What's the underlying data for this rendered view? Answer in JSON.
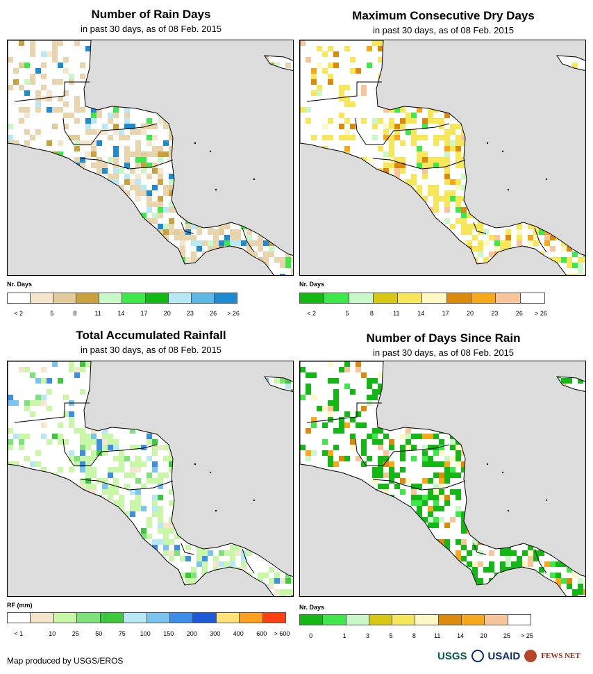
{
  "panels": [
    {
      "id": "rain_days",
      "title": "Number of Rain Days",
      "subtitle": "in past 30 days, as of 08 Feb. 2015",
      "unit": "Nr. Days",
      "legend_colors": [
        "#ffffff",
        "#f4e6cc",
        "#e2cb9b",
        "#c9a23f",
        "#c8f7c8",
        "#3ee84a",
        "#14b814",
        "#b9e8f5",
        "#5cb9e6",
        "#1e8ad2"
      ],
      "legend_labels": [
        "< 2",
        "5",
        "8",
        "11",
        "14",
        "17",
        "20",
        "23",
        "26",
        "> 26"
      ],
      "fill": "#e8d5ad",
      "patches": [
        "#f4e6cc",
        "#e2cb9b",
        "#c9a23f",
        "#c8f7c8",
        "#3ee84a",
        "#b9e8f5",
        "#1e8ad2"
      ]
    },
    {
      "id": "dry_days",
      "title": "Maximum Consecutive Dry Days",
      "subtitle": "in past 30 days, as of 08 Feb. 2015",
      "unit": "Nr. Days",
      "legend_colors": [
        "#14b814",
        "#3ee84a",
        "#c8f7c8",
        "#d9c715",
        "#f5e65a",
        "#fdf8c6",
        "#dc8a0c",
        "#f6a71a",
        "#f8c49a",
        "#ffffff"
      ],
      "legend_labels": [
        "< 2",
        "5",
        "8",
        "11",
        "14",
        "17",
        "20",
        "23",
        "26",
        "> 26"
      ],
      "fill": "#f5e65a",
      "patches": [
        "#dc8a0c",
        "#f6a71a",
        "#f8c49a",
        "#fdf8c6",
        "#3ee84a",
        "#c8f7c8",
        "#ffffff"
      ]
    },
    {
      "id": "total_rain",
      "title": "Total Accumulated Rainfall",
      "subtitle": "in past 30 days, as of 08 Feb. 2015",
      "unit": "RF (mm)",
      "legend_colors": [
        "#ffffff",
        "#f4e6cc",
        "#c8f7a8",
        "#7ee27a",
        "#3ec83e",
        "#b9e8f5",
        "#7ac4f0",
        "#3c8ee8",
        "#1e5ad8",
        "#ffe27a",
        "#ffa020",
        "#ff4010"
      ],
      "legend_labels": [
        "< 1",
        "10",
        "25",
        "50",
        "75",
        "100",
        "150",
        "200",
        "300",
        "400",
        "600",
        "> 600"
      ],
      "fill": "#c8f7a8",
      "patches": [
        "#7ee27a",
        "#3ec83e",
        "#b9e8f5",
        "#7ac4f0",
        "#3c8ee8",
        "#f4e6cc",
        "#ffffff"
      ]
    },
    {
      "id": "days_since_rain",
      "title": "Number of Days Since Rain",
      "subtitle": "in past 30 days, as of 08 Feb. 2015",
      "unit": "Nr. Days",
      "legend_colors": [
        "#14b814",
        "#3ee84a",
        "#c8f7c8",
        "#d9c715",
        "#f5e65a",
        "#fdf8c6",
        "#dc8a0c",
        "#f6a71a",
        "#f8c49a",
        "#ffffff"
      ],
      "legend_labels": [
        "0",
        "1",
        "3",
        "5",
        "8",
        "11",
        "14",
        "20",
        "25",
        "> 25"
      ],
      "fill": "#14b814",
      "patches": [
        "#f6a71a",
        "#f8c49a",
        "#fdf8c6",
        "#3ee84a",
        "#c8f7c8",
        "#ffffff",
        "#dc8a0c"
      ]
    }
  ],
  "credit": "Map produced by USGS/EROS",
  "logos": {
    "usgs": "USGS",
    "usaid": "USAID",
    "fews": "FEWS NET"
  }
}
